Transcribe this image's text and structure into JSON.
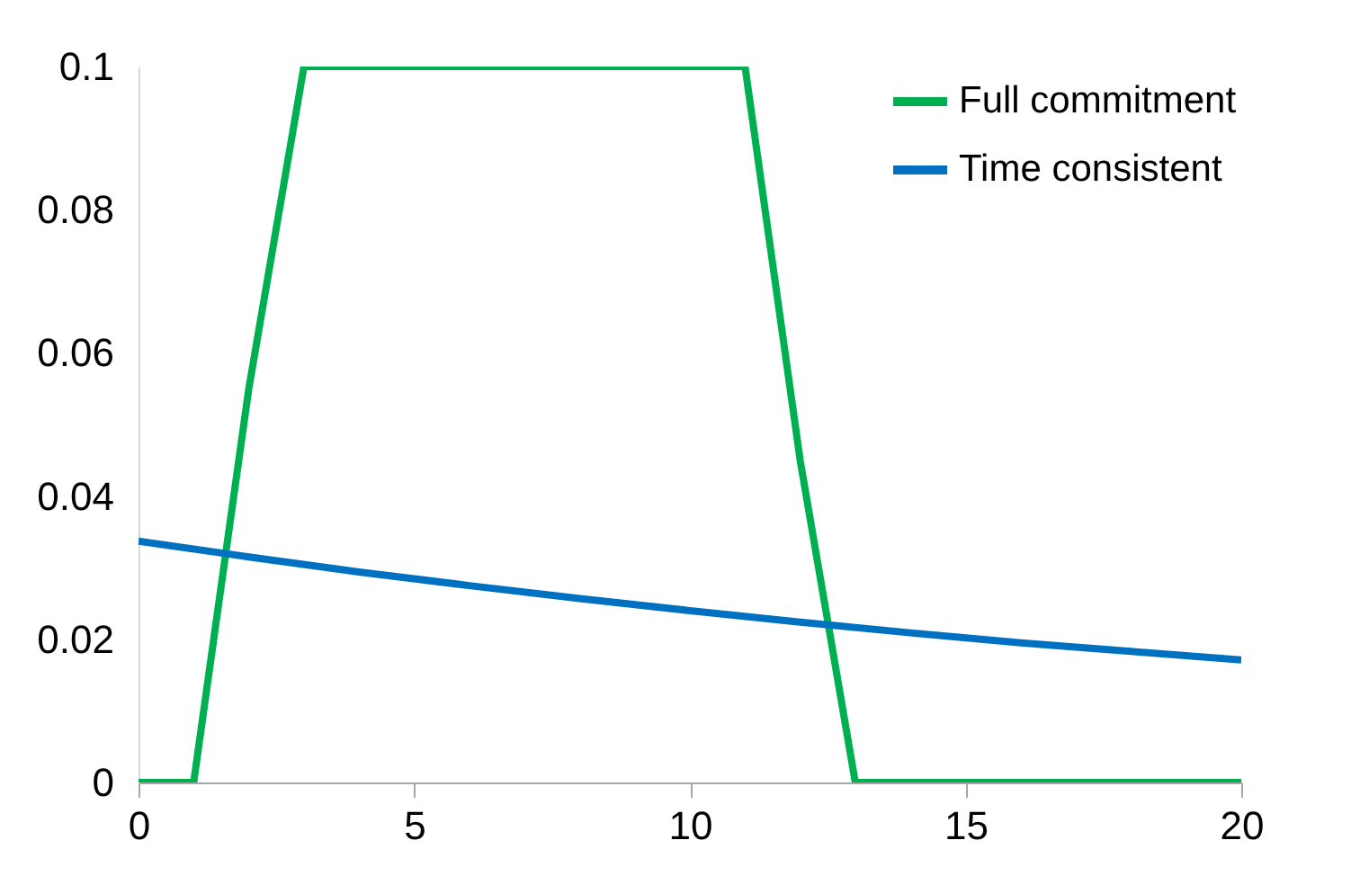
{
  "chart_data": {
    "type": "line",
    "xlim": [
      0,
      20
    ],
    "xticks": [
      0,
      5,
      10,
      15,
      20
    ],
    "ylim": [
      0,
      0.1
    ],
    "yticks": [
      0,
      0.02,
      0.04,
      0.06,
      0.08,
      0.1
    ],
    "grid": false,
    "legend": "top right",
    "series": [
      {
        "name": "Full commitment",
        "color": "#00b050",
        "x": [
          0,
          1,
          2,
          3,
          11,
          12,
          13,
          20
        ],
        "values": [
          0,
          0,
          0.055,
          0.1,
          0.1,
          0.045,
          0,
          0
        ]
      },
      {
        "name": "Time consistent",
        "color": "#0070c0",
        "x": [
          0,
          2,
          4,
          6,
          8,
          10,
          12,
          14,
          16,
          18,
          20
        ],
        "values": [
          0.0337,
          0.0315,
          0.0294,
          0.0275,
          0.0257,
          0.024,
          0.0224,
          0.0209,
          0.0195,
          0.0183,
          0.0171
        ]
      }
    ]
  }
}
